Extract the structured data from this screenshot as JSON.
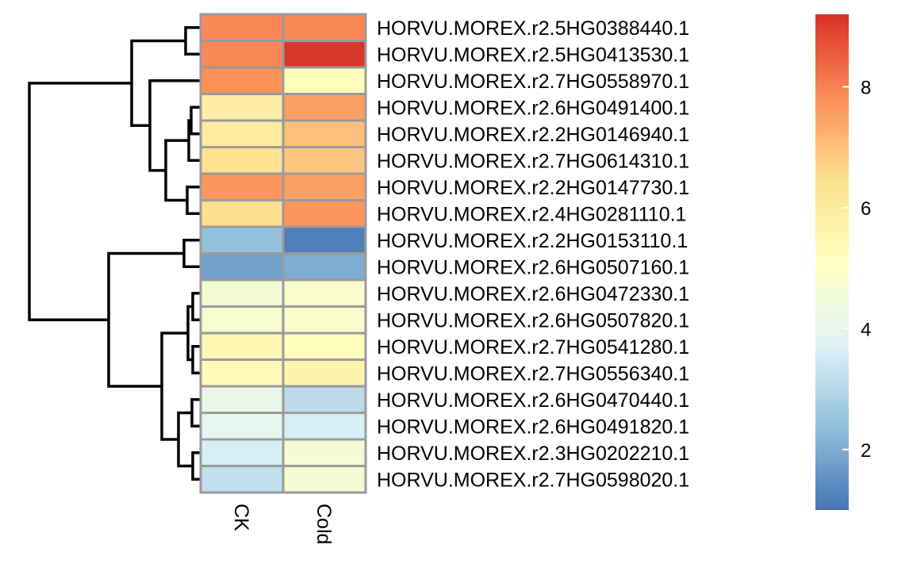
{
  "chart_data": {
    "type": "heatmap",
    "columns": [
      "CK",
      "Cold"
    ],
    "rows": [
      "HORVU.MOREX.r2.5HG0388440.1",
      "HORVU.MOREX.r2.5HG0413530.1",
      "HORVU.MOREX.r2.7HG0558970.1",
      "HORVU.MOREX.r2.6HG0491400.1",
      "HORVU.MOREX.r2.2HG0146940.1",
      "HORVU.MOREX.r2.7HG0614310.1",
      "HORVU.MOREX.r2.2HG0147730.1",
      "HORVU.MOREX.r2.4HG0281110.1",
      "HORVU.MOREX.r2.2HG0153110.1",
      "HORVU.MOREX.r2.6HG0507160.1",
      "HORVU.MOREX.r2.6HG0472330.1",
      "HORVU.MOREX.r2.6HG0507820.1",
      "HORVU.MOREX.r2.7HG0541280.1",
      "HORVU.MOREX.r2.7HG0556340.1",
      "HORVU.MOREX.r2.6HG0470440.1",
      "HORVU.MOREX.r2.6HG0491820.1",
      "HORVU.MOREX.r2.3HG0202210.1",
      "HORVU.MOREX.r2.7HG0598020.1"
    ],
    "values": [
      [
        7.9,
        7.9
      ],
      [
        7.9,
        9.1
      ],
      [
        7.8,
        5.2
      ],
      [
        5.9,
        7.5
      ],
      [
        6.0,
        7.0
      ],
      [
        6.4,
        6.9
      ],
      [
        7.7,
        7.5
      ],
      [
        6.5,
        7.7
      ],
      [
        2.4,
        1.2
      ],
      [
        1.8,
        2.0
      ],
      [
        4.6,
        4.8
      ],
      [
        4.7,
        4.8
      ],
      [
        5.5,
        5.2
      ],
      [
        5.3,
        5.6
      ],
      [
        4.1,
        3.1
      ],
      [
        4.0,
        3.6
      ],
      [
        3.6,
        4.6
      ],
      [
        3.2,
        4.6
      ]
    ],
    "colorbar": {
      "min": 1.0,
      "max": 9.2,
      "ticks": [
        2,
        4,
        6,
        8
      ],
      "colors": [
        "#4575b4",
        "#91bfdb",
        "#e0f3f8",
        "#ffffbf",
        "#fee090",
        "#fc8d59",
        "#d73027"
      ]
    },
    "cell_border_color": "#9a9a9a",
    "dendrogram": "rows"
  }
}
